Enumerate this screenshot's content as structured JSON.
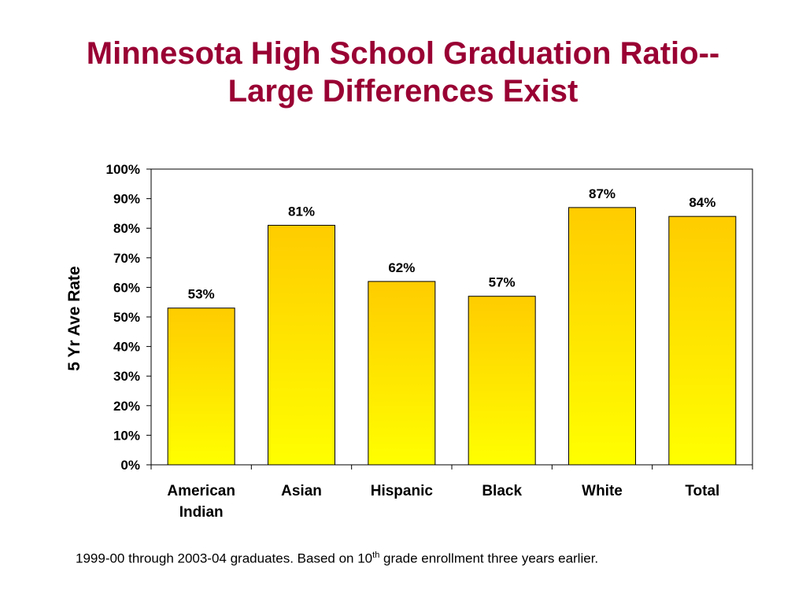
{
  "slide": {
    "title_line1": "Minnesota High School Graduation Ratio--",
    "title_line2": "Large Differences Exist"
  },
  "footnote": {
    "before_sup": "1999-00 through 2003-04 graduates. Based on 10",
    "sup": "th",
    "after_sup": " grade enrollment three years earlier."
  },
  "colors": {
    "title": "#990033",
    "bar_top": "#FFCC00",
    "bar_bottom": "#FFFF00",
    "bar_stroke": "#000000"
  },
  "chart_data": {
    "type": "bar",
    "categories": [
      [
        "American",
        "Indian"
      ],
      [
        "Asian"
      ],
      [
        "Hispanic"
      ],
      [
        "Black"
      ],
      [
        "White"
      ],
      [
        "Total"
      ]
    ],
    "values": [
      53,
      81,
      62,
      57,
      87,
      84
    ],
    "value_labels": [
      "53%",
      "81%",
      "62%",
      "57%",
      "87%",
      "84%"
    ],
    "ylabel": "5 Yr Ave Rate",
    "ylim": [
      0,
      100
    ],
    "yticks": [
      0,
      10,
      20,
      30,
      40,
      50,
      60,
      70,
      80,
      90,
      100
    ],
    "ytick_labels": [
      "0%",
      "10%",
      "20%",
      "30%",
      "40%",
      "50%",
      "60%",
      "70%",
      "80%",
      "90%",
      "100%"
    ],
    "grid": false,
    "legend": "none"
  }
}
